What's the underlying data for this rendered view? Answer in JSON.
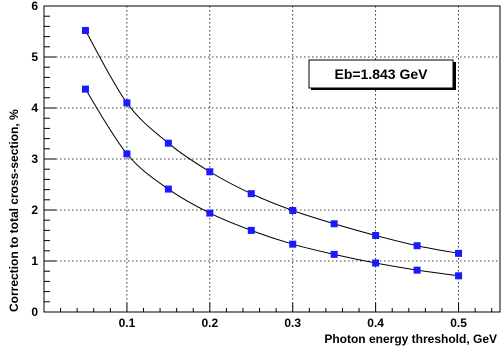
{
  "chart_data": {
    "type": "line",
    "xlabel": "Photon energy threshold, GeV",
    "ylabel": "Correction to total cross-section, %",
    "xlim": [
      0,
      0.55
    ],
    "ylim": [
      0,
      6
    ],
    "x_ticks": [
      0.1,
      0.2,
      0.3,
      0.4,
      0.5
    ],
    "x_tick_labels": [
      "0.1",
      "0.2",
      "0.3",
      "0.4",
      "0.5"
    ],
    "y_ticks": [
      0,
      1,
      2,
      3,
      4,
      5,
      6
    ],
    "y_tick_labels": [
      "0",
      "1",
      "2",
      "3",
      "4",
      "5",
      "6"
    ],
    "grid": true,
    "annotation": "Eb=1.843 GeV",
    "marker_color": "#1a1aff",
    "x": [
      0.05,
      0.1,
      0.15,
      0.2,
      0.25,
      0.3,
      0.35,
      0.4,
      0.45,
      0.5
    ],
    "series": [
      {
        "values": [
          5.52,
          4.1,
          3.31,
          2.75,
          2.32,
          1.99,
          1.73,
          1.5,
          1.3,
          1.15
        ]
      },
      {
        "values": [
          4.37,
          3.1,
          2.41,
          1.94,
          1.6,
          1.33,
          1.13,
          0.96,
          0.82,
          0.71
        ]
      }
    ]
  }
}
